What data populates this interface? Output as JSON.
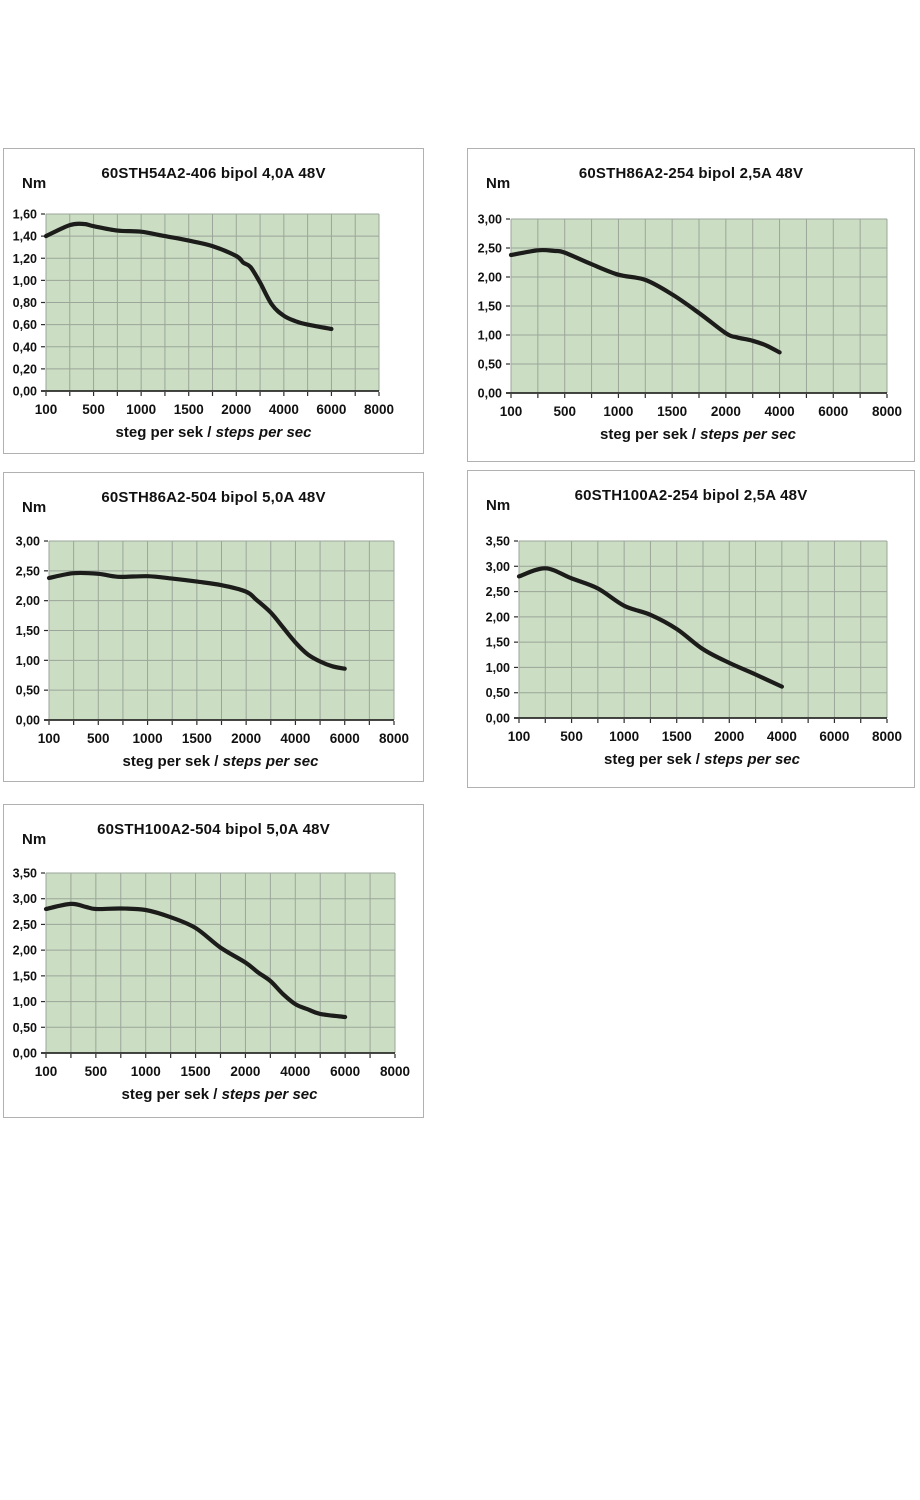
{
  "labels": {
    "y_unit": "Nm",
    "x_normal": "steg per sek / ",
    "x_italic": "steps per sec"
  },
  "colors": {
    "page_bg": "#ffffff",
    "plot_bg": "#cbdec3",
    "grid": "#9ba59a",
    "axis": "#2b2b29",
    "curve": "#1c1c1a",
    "panel_border": "#b1b1b1",
    "text": "#111111"
  },
  "x_categories": [
    100,
    250,
    500,
    750,
    1000,
    1250,
    1500,
    1750,
    2000,
    3000,
    4000,
    5000,
    6000,
    7000,
    8000
  ],
  "x_tick_labels": [
    "100",
    "500",
    "1000",
    "1500",
    "2000",
    "4000",
    "6000",
    "8000"
  ],
  "chart_data": [
    {
      "type": "line",
      "title": "60STH54A2-406 bipol 4,0A 48V",
      "ylabel": "Nm",
      "xlabel": "steg per sek / steps per sec",
      "x_scale": "category",
      "grid": true,
      "ylim": [
        0,
        1.6
      ],
      "ytick_step": 0.2,
      "y_tick_labels": [
        "0,00",
        "0,20",
        "0,40",
        "0,60",
        "0,80",
        "1,00",
        "1,20",
        "1,40",
        "1,60"
      ],
      "points": [
        [
          100,
          1.4
        ],
        [
          250,
          1.5
        ],
        [
          400,
          1.51
        ],
        [
          500,
          1.49
        ],
        [
          750,
          1.45
        ],
        [
          1000,
          1.44
        ],
        [
          1250,
          1.4
        ],
        [
          1500,
          1.36
        ],
        [
          1750,
          1.31
        ],
        [
          2000,
          1.22
        ],
        [
          2300,
          1.16
        ],
        [
          2600,
          1.12
        ],
        [
          3000,
          0.98
        ],
        [
          3500,
          0.78
        ],
        [
          4000,
          0.68
        ],
        [
          4500,
          0.63
        ],
        [
          5000,
          0.6
        ],
        [
          6000,
          0.56
        ]
      ]
    },
    {
      "type": "line",
      "title": "60STH86A2-254 bipol 2,5A 48V",
      "ylabel": "Nm",
      "xlabel": "steg per sek / steps per sec",
      "x_scale": "category",
      "grid": true,
      "ylim": [
        0,
        3.0
      ],
      "ytick_step": 0.5,
      "y_tick_labels": [
        "0,00",
        "0,50",
        "1,00",
        "1,50",
        "2,00",
        "2,50",
        "3,00"
      ],
      "points": [
        [
          100,
          2.38
        ],
        [
          250,
          2.46
        ],
        [
          400,
          2.45
        ],
        [
          500,
          2.42
        ],
        [
          750,
          2.22
        ],
        [
          1000,
          2.04
        ],
        [
          1250,
          1.95
        ],
        [
          1500,
          1.7
        ],
        [
          1750,
          1.38
        ],
        [
          2000,
          1.03
        ],
        [
          2400,
          0.96
        ],
        [
          3000,
          0.9
        ],
        [
          3500,
          0.82
        ],
        [
          4000,
          0.7
        ]
      ]
    },
    {
      "type": "line",
      "title": "60STH86A2-504 bipol 5,0A 48V",
      "ylabel": "Nm",
      "xlabel": "steg per sek / steps per sec",
      "x_scale": "category",
      "grid": true,
      "ylim": [
        0,
        3.0
      ],
      "ytick_step": 0.5,
      "y_tick_labels": [
        "0,00",
        "0,50",
        "1,00",
        "1,50",
        "2,00",
        "2,50",
        "3,00"
      ],
      "points": [
        [
          100,
          2.38
        ],
        [
          250,
          2.46
        ],
        [
          500,
          2.45
        ],
        [
          700,
          2.4
        ],
        [
          1000,
          2.41
        ],
        [
          1250,
          2.37
        ],
        [
          1500,
          2.32
        ],
        [
          1750,
          2.26
        ],
        [
          2000,
          2.15
        ],
        [
          2400,
          2.02
        ],
        [
          3000,
          1.8
        ],
        [
          3500,
          1.55
        ],
        [
          4000,
          1.3
        ],
        [
          4500,
          1.1
        ],
        [
          5000,
          0.98
        ],
        [
          5500,
          0.9
        ],
        [
          6000,
          0.86
        ]
      ]
    },
    {
      "type": "line",
      "title": "60STH100A2-254 bipol 2,5A 48V",
      "ylabel": "Nm",
      "xlabel": "steg per sek / steps per sec",
      "x_scale": "category",
      "grid": true,
      "ylim": [
        0,
        3.5
      ],
      "ytick_step": 0.5,
      "y_tick_labels": [
        "0,00",
        "0,50",
        "1,00",
        "1,50",
        "2,00",
        "2,50",
        "3,00",
        "3,50"
      ],
      "points": [
        [
          100,
          2.8
        ],
        [
          250,
          2.96
        ],
        [
          500,
          2.76
        ],
        [
          750,
          2.56
        ],
        [
          1000,
          2.22
        ],
        [
          1250,
          2.04
        ],
        [
          1500,
          1.76
        ],
        [
          1750,
          1.36
        ],
        [
          2000,
          1.09
        ],
        [
          3000,
          0.86
        ],
        [
          4000,
          0.62
        ]
      ]
    },
    {
      "type": "line",
      "title": "60STH100A2-504 bipol 5,0A 48V",
      "ylabel": "Nm",
      "xlabel": "steg per sek / steps per sec",
      "x_scale": "category",
      "grid": true,
      "ylim": [
        0,
        3.5
      ],
      "ytick_step": 0.5,
      "y_tick_labels": [
        "0,00",
        "0,50",
        "1,00",
        "1,50",
        "2,00",
        "2,50",
        "3,00",
        "3,50"
      ],
      "points": [
        [
          100,
          2.8
        ],
        [
          250,
          2.9
        ],
        [
          400,
          2.84
        ],
        [
          500,
          2.8
        ],
        [
          750,
          2.81
        ],
        [
          1000,
          2.78
        ],
        [
          1250,
          2.64
        ],
        [
          1500,
          2.43
        ],
        [
          1750,
          2.05
        ],
        [
          2000,
          1.76
        ],
        [
          2500,
          1.57
        ],
        [
          3000,
          1.4
        ],
        [
          3500,
          1.15
        ],
        [
          4000,
          0.95
        ],
        [
          4500,
          0.85
        ],
        [
          5000,
          0.76
        ],
        [
          6000,
          0.7
        ]
      ]
    }
  ]
}
